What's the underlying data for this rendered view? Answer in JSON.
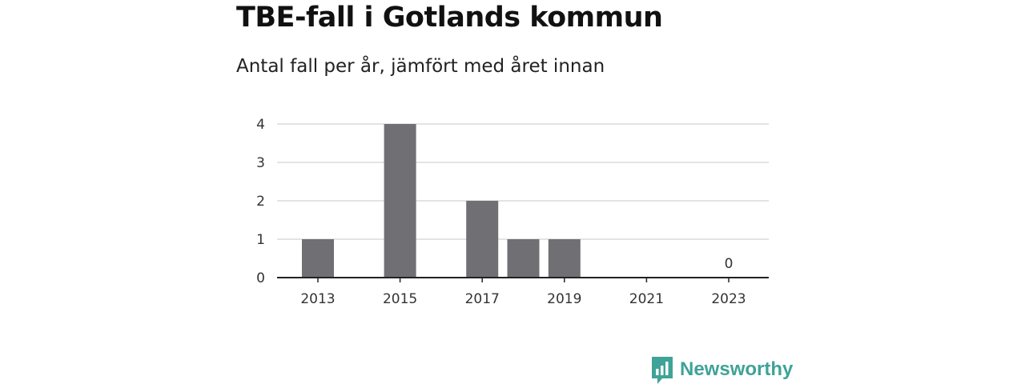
{
  "chart_data": {
    "type": "bar",
    "title": "TBE-fall i Gotlands kommun",
    "subtitle": "Antal fall per år, jämfört med året innan",
    "xlabel": "",
    "ylabel": "",
    "categories": [
      "2013",
      "2014",
      "2015",
      "2016",
      "2017",
      "2018",
      "2019",
      "2020",
      "2021",
      "2022",
      "2023"
    ],
    "values": [
      1,
      0,
      4,
      0,
      2,
      1,
      1,
      0,
      0,
      0,
      0
    ],
    "x_tick_labels": [
      "2013",
      "2015",
      "2017",
      "2019",
      "2021",
      "2023"
    ],
    "y_ticks": [
      0,
      1,
      2,
      3,
      4
    ],
    "ylim": [
      0,
      4
    ],
    "grid": true,
    "bar_color": "#706f74",
    "annotations": [
      {
        "category": "2023",
        "text": "0"
      }
    ]
  },
  "brand": {
    "name": "Newsworthy",
    "icon": "newsworthy-logo-icon",
    "color": "#3fa397"
  }
}
